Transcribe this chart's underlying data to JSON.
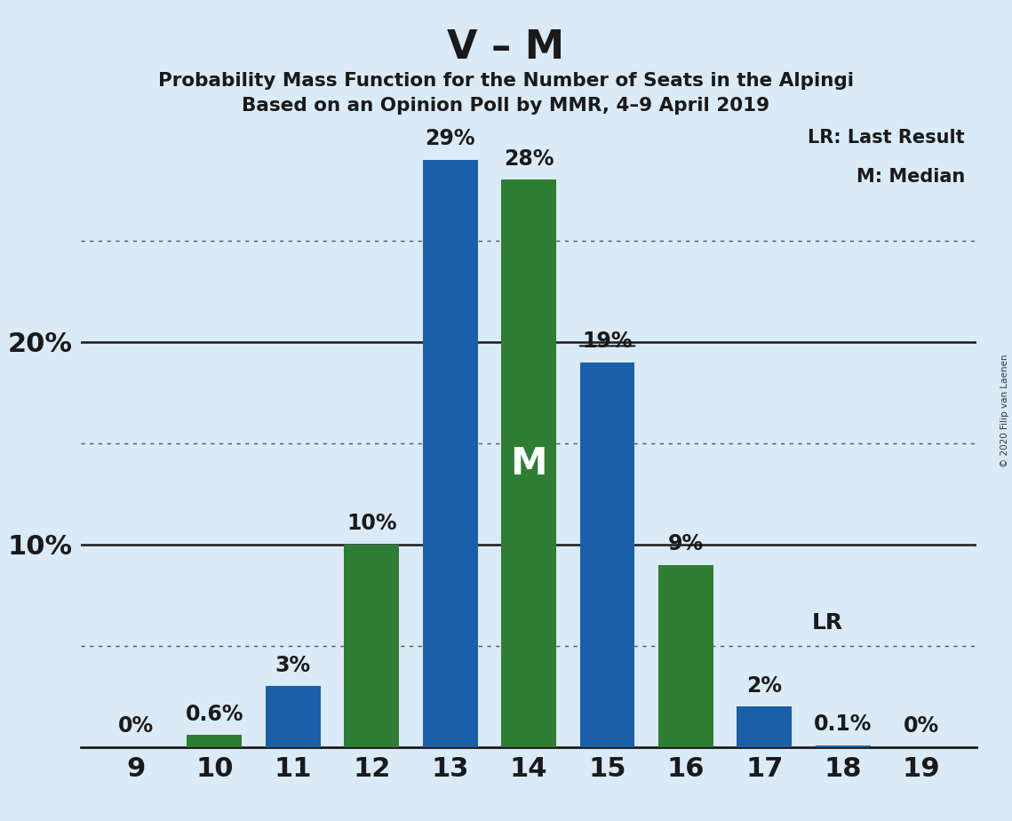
{
  "title": "V – M",
  "subtitle1": "Probability Mass Function for the Number of Seats in the Alpingi",
  "subtitle2": "Based on an Opinion Poll by MMR, 4–9 April 2019",
  "copyright": "© 2020 Filip van Laenen",
  "seats": [
    9,
    10,
    11,
    12,
    13,
    14,
    15,
    16,
    17,
    18,
    19
  ],
  "values": [
    0.0,
    0.6,
    3.0,
    10.0,
    29.0,
    28.0,
    19.0,
    9.0,
    2.0,
    0.1,
    0.0
  ],
  "bar_colors": [
    "#1a5fa8",
    "#2e7d32",
    "#1a5fa8",
    "#2e7d32",
    "#1a5fa8",
    "#2e7d32",
    "#1a5fa8",
    "#2e7d32",
    "#1a5fa8",
    "#1a5fa8",
    "#1a5fa8"
  ],
  "bar_labels": [
    "0%",
    "0.6%",
    "3%",
    "10%",
    "29%",
    "28%",
    "19%",
    "9%",
    "2%",
    "0.1%",
    "0%"
  ],
  "label_strikethrough": [
    false,
    false,
    false,
    false,
    false,
    false,
    true,
    false,
    false,
    false,
    false
  ],
  "background_color": "#daeaf7",
  "ylim": [
    0,
    31
  ],
  "ytick_positions": [
    10,
    20
  ],
  "ytick_labels": [
    "10%",
    "20%"
  ],
  "grid_dotted": [
    5,
    15,
    25
  ],
  "grid_solid": [
    10,
    20
  ],
  "legend_text1": "LR: Last Result",
  "legend_text2": "M: Median",
  "m_seat": 14,
  "lr_seat": 17,
  "bar_width": 0.7,
  "label_fontsize": 17,
  "tick_fontsize": 22
}
